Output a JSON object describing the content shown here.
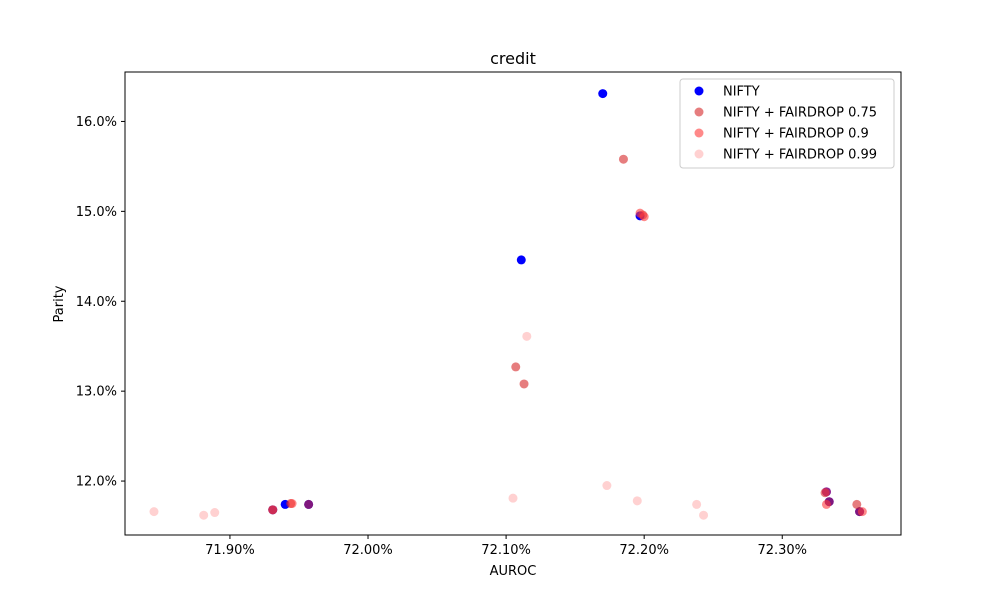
{
  "chart_data": {
    "type": "scatter",
    "title": "credit",
    "xlabel": "AUROC",
    "ylabel": "Parity",
    "xlim": [
      71.824,
      72.386
    ],
    "ylim": [
      11.4,
      16.55
    ],
    "x_ticks": [
      71.9,
      72.0,
      72.1,
      72.2,
      72.3
    ],
    "x_tick_labels": [
      "71.90%",
      "72.00%",
      "72.10%",
      "72.20%",
      "72.30%"
    ],
    "y_ticks": [
      12.0,
      13.0,
      14.0,
      15.0,
      16.0
    ],
    "y_tick_labels": [
      "12.0%",
      "13.0%",
      "14.0%",
      "15.0%",
      "16.0%"
    ],
    "grid": false,
    "legend_position": "top-right",
    "series": [
      {
        "name": "NIFTY",
        "color": "#0000ff",
        "opacity": 1.0,
        "points": [
          [
            72.17,
            16.31
          ],
          [
            72.111,
            14.46
          ],
          [
            72.197,
            14.95
          ],
          [
            71.94,
            11.74
          ],
          [
            71.957,
            11.74
          ],
          [
            71.931,
            11.68
          ],
          [
            72.332,
            11.88
          ],
          [
            72.334,
            11.77
          ],
          [
            72.356,
            11.66
          ]
        ]
      },
      {
        "name": "NIFTY + FAIRDROP 0.75",
        "color": "#d62728",
        "opacity": 0.6,
        "points": [
          [
            72.185,
            15.58
          ],
          [
            72.199,
            14.96
          ],
          [
            72.107,
            13.27
          ],
          [
            72.113,
            13.08
          ],
          [
            71.931,
            11.68
          ],
          [
            71.944,
            11.75
          ],
          [
            71.957,
            11.74
          ],
          [
            72.331,
            11.87
          ],
          [
            72.334,
            11.77
          ],
          [
            72.354,
            11.74
          ],
          [
            72.356,
            11.66
          ]
        ]
      },
      {
        "name": "NIFTY + FAIRDROP 0.9",
        "color": "#ff3b3b",
        "opacity": 0.6,
        "points": [
          [
            72.197,
            14.98
          ],
          [
            72.2,
            14.94
          ],
          [
            71.945,
            11.75
          ],
          [
            71.931,
            11.68
          ],
          [
            72.332,
            11.74
          ],
          [
            72.358,
            11.66
          ],
          [
            72.332,
            11.88
          ]
        ]
      },
      {
        "name": "NIFTY + FAIRDROP 0.99",
        "color": "#ff9a9a",
        "opacity": 0.45,
        "points": [
          [
            72.115,
            13.61
          ],
          [
            72.105,
            11.81
          ],
          [
            72.173,
            11.95
          ],
          [
            72.195,
            11.78
          ],
          [
            72.238,
            11.74
          ],
          [
            72.243,
            11.62
          ],
          [
            71.845,
            11.66
          ],
          [
            71.881,
            11.62
          ],
          [
            71.889,
            11.65
          ]
        ]
      }
    ]
  }
}
